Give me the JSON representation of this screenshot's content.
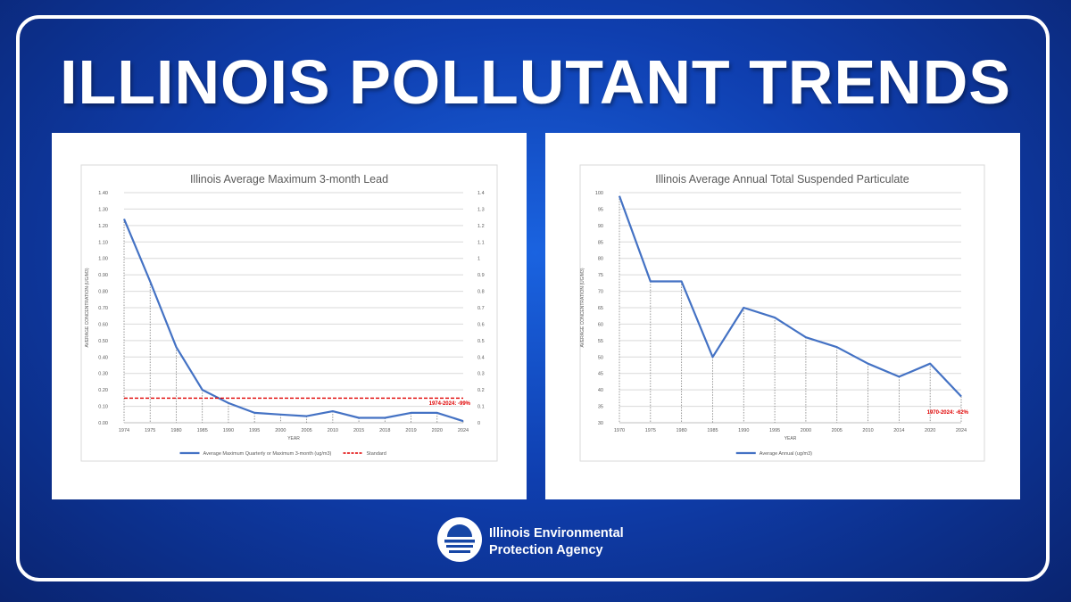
{
  "headline": "ILLINOIS POLLUTANT TRENDS",
  "agency": {
    "line1": "Illinois Environmental",
    "line2": "Protection Agency"
  },
  "chart_data": [
    {
      "type": "line",
      "title": "Illinois Average Maximum 3-month Lead",
      "xlabel": "YEAR",
      "ylabel": "AVERAGE CONCENTRATION (UG/M3)",
      "categories": [
        "1974",
        "1975",
        "1980",
        "1985",
        "1990",
        "1995",
        "2000",
        "2005",
        "2010",
        "2015",
        "2018",
        "2019",
        "2020",
        "2024"
      ],
      "ylim": [
        0,
        1.4
      ],
      "y_ticks_left": [
        "0.00",
        "0.10",
        "0.20",
        "0.30",
        "0.40",
        "0.50",
        "0.60",
        "0.70",
        "0.80",
        "0.90",
        "1.00",
        "1.10",
        "1.20",
        "1.30",
        "1.40"
      ],
      "y_ticks_right": [
        "0",
        "0.1",
        "0.2",
        "0.3",
        "0.4",
        "0.5",
        "0.6",
        "0.7",
        "0.8",
        "0.9",
        "1",
        "1.1",
        "1.2",
        "1.3",
        "1.4"
      ],
      "series": [
        {
          "name": "Average Maximum Quarterly or Maximum 3-month (ug/m3)",
          "color": "#4472c4",
          "style": "solid",
          "values": [
            1.24,
            0.86,
            0.46,
            0.2,
            0.12,
            0.06,
            0.05,
            0.04,
            0.07,
            0.03,
            0.03,
            0.06,
            0.06,
            0.01
          ]
        },
        {
          "name": "Standard",
          "color": "#e00000",
          "style": "dashed",
          "values": [
            0.15,
            0.15,
            0.15,
            0.15,
            0.15,
            0.15,
            0.15,
            0.15,
            0.15,
            0.15,
            0.15,
            0.15,
            0.15,
            0.15
          ]
        }
      ],
      "annotation": "1974-2024: -99%",
      "grid": true,
      "legend_position": "bottom"
    },
    {
      "type": "line",
      "title": "Illinois Average Annual Total Suspended Particulate",
      "xlabel": "YEAR",
      "ylabel": "AVERAGE CONCENTRATION (UG/M3)",
      "categories": [
        "1970",
        "1975",
        "1980",
        "1985",
        "1990",
        "1995",
        "2000",
        "2005",
        "2010",
        "2014",
        "2020",
        "2024"
      ],
      "ylim": [
        30,
        100
      ],
      "y_ticks_left": [
        "30",
        "35",
        "40",
        "45",
        "50",
        "55",
        "60",
        "65",
        "70",
        "75",
        "80",
        "85",
        "90",
        "95",
        "100"
      ],
      "series": [
        {
          "name": "Average Annual (ug/m3)",
          "color": "#4472c4",
          "style": "solid",
          "values": [
            99,
            73,
            73,
            50,
            65,
            62,
            56,
            53,
            48,
            44,
            48,
            38
          ]
        }
      ],
      "annotation": "1970-2024: -62%",
      "grid": true,
      "legend_position": "bottom"
    }
  ]
}
